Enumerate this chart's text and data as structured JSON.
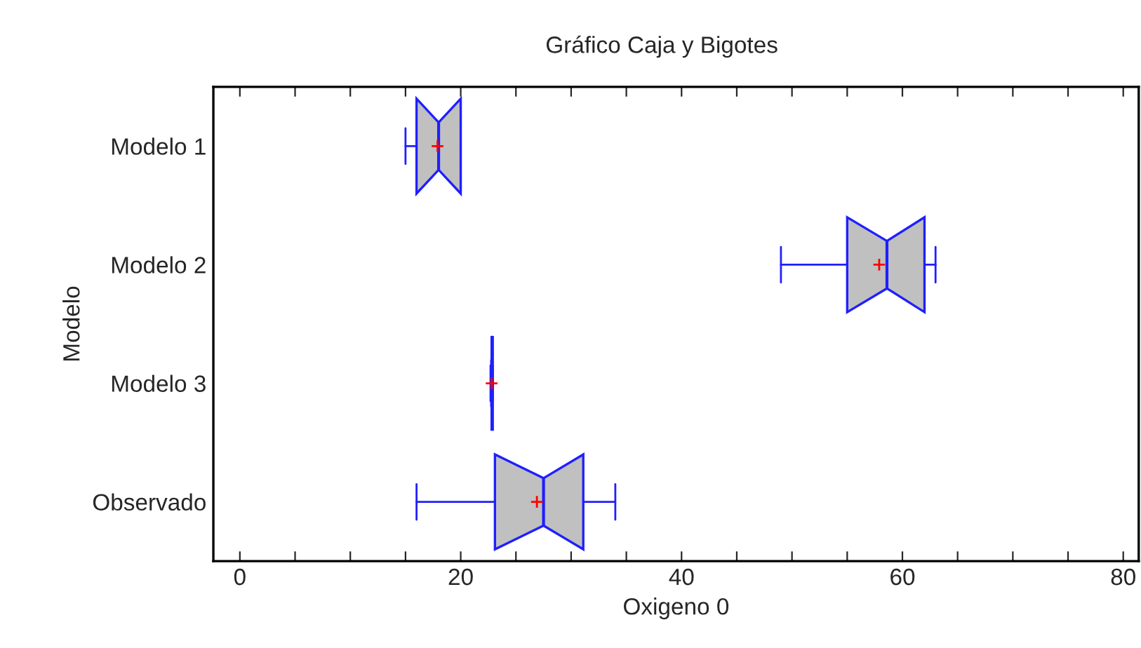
{
  "chart_data": {
    "type": "box",
    "title": "Gráfico Caja y Bigotes",
    "xlabel": "Oxigeno 0",
    "ylabel": "Modelo",
    "orientation": "horizontal",
    "categories": [
      "Modelo 1",
      "Modelo 2",
      "Modelo 3",
      "Observado"
    ],
    "series": [
      {
        "color": "#c0c0c0",
        "boxes": [
          {
            "low": 15,
            "q1": 16,
            "median": 18,
            "q3": 20,
            "high": 20,
            "mean": 17.9
          },
          {
            "low": 49,
            "q1": 55,
            "median": 58.6,
            "q3": 62,
            "high": 63,
            "mean": 57.9
          },
          {
            "low": 22.7,
            "q1": 22.8,
            "median": 22.8,
            "q3": 22.9,
            "high": 22.9,
            "mean": 22.8
          },
          {
            "low": 16,
            "q1": 23.1,
            "median": 27.5,
            "q3": 31.1,
            "high": 34,
            "mean": 26.9
          }
        ]
      }
    ],
    "xlim": [
      -2.4,
      81.4
    ],
    "xticks": [
      0,
      {
        "value": 5,
        "label": null
      },
      {
        "value": 10,
        "label": null
      },
      {
        "value": 15,
        "label": null
      },
      20,
      {
        "value": 25,
        "label": null
      },
      {
        "value": 30,
        "label": null
      },
      {
        "value": 35,
        "label": null
      },
      40,
      {
        "value": 45,
        "label": null
      },
      {
        "value": 50,
        "label": null
      },
      {
        "value": 55,
        "label": null
      },
      60,
      {
        "value": 65,
        "label": null
      },
      {
        "value": 70,
        "label": null
      },
      {
        "value": 75,
        "label": null
      },
      80
    ],
    "grid": false
  }
}
